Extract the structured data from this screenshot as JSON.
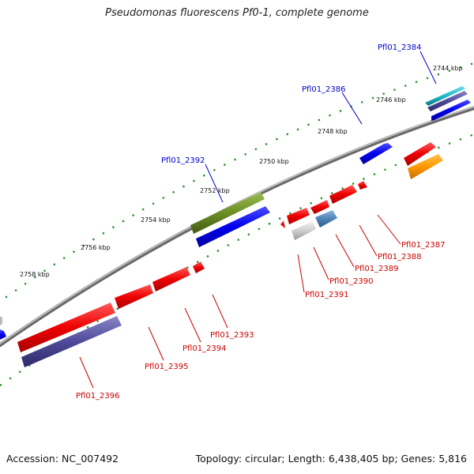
{
  "title": "Pseudomonas fluorescens Pf0-1, complete genome",
  "footer": {
    "accession": "Accession: NC_007492",
    "summary": "Topology: circular; Length: 6,438,405 bp; Genes: 5,816"
  },
  "colors": {
    "forward_label": "#0000cc",
    "reverse_label": "#cc0000",
    "backbone": "#888888",
    "tick": "#2a8a2a"
  },
  "kbp_labels": [
    "2744 kbp",
    "2746 kbp",
    "2748 kbp",
    "2750 kbp",
    "2752 kbp",
    "2754 kbp",
    "2756 kbp",
    "2758 kbp"
  ],
  "forward_genes": [
    "Pfl01_2384",
    "Pfl01_2386",
    "Pfl01_2392"
  ],
  "reverse_genes": [
    "Pfl01_2387",
    "Pfl01_2388",
    "Pfl01_2389",
    "Pfl01_2390",
    "Pfl01_2391",
    "Pfl01_2393",
    "Pfl01_2394",
    "Pfl01_2395",
    "Pfl01_2396"
  ]
}
